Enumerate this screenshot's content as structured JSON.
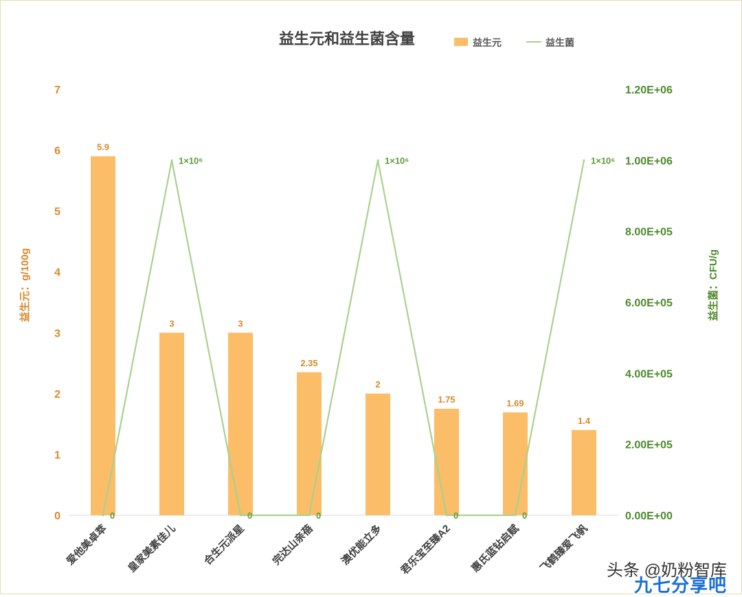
{
  "chart_data": {
    "type": "bar",
    "title": "益生元和益生菌含量",
    "categories": [
      "爱他美卓萃",
      "皇家美素佳儿",
      "合生元派星",
      "完达山亲蓓",
      "澳优能立多",
      "君乐宝至臻A2",
      "惠氏蓝钻启赋",
      "飞鹤臻爱飞帆"
    ],
    "series": [
      {
        "name": "益生元",
        "chart": "bar",
        "axis": "left",
        "color": "#fbbd68",
        "values": [
          5.9,
          3,
          3,
          2.35,
          2,
          1.75,
          1.69,
          1.4
        ],
        "labels": [
          "5.9",
          "3",
          "3",
          "2.35",
          "2",
          "1.75",
          "1.69",
          "1.4"
        ]
      },
      {
        "name": "益生菌",
        "chart": "line",
        "axis": "right",
        "color": "#a9d18e",
        "values": [
          0,
          1000000,
          0,
          0,
          1000000,
          0,
          0,
          1000000
        ],
        "labels": [
          "0",
          "1×10⁶",
          "0",
          "0",
          "1×10⁶",
          "0",
          "0",
          "1×10⁶"
        ]
      }
    ],
    "y_left": {
      "label": "益生元：g/100g",
      "range": [
        0,
        7
      ],
      "ticks": [
        "0",
        "1",
        "2",
        "3",
        "4",
        "5",
        "6",
        "7"
      ]
    },
    "y_right": {
      "label": "益生菌：CFU/g",
      "range": [
        0,
        1200000
      ],
      "ticks": [
        "0.00E+00",
        "2.00E+05",
        "4.00E+05",
        "6.00E+05",
        "8.00E+05",
        "1.00E+06",
        "1.20E+06"
      ]
    },
    "legend": "top-right",
    "grid": false
  },
  "watermark": {
    "text": "头条 @奶粉智库",
    "text2": "九七分享吧"
  }
}
